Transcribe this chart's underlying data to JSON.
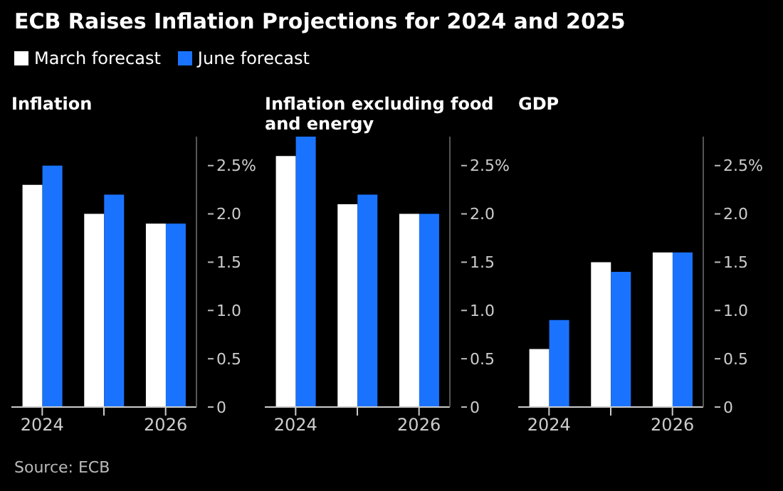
{
  "chart_data": [
    {
      "type": "bar",
      "title": "ECB Raises Inflation Projections for 2024 and 2025",
      "subtitle": "Inflation",
      "legend": "top right",
      "annotations": [
        "Source: ECB"
      ],
      "categories": [
        "2024",
        null,
        "2026"
      ],
      "series": [
        {
          "name": "March forecast",
          "color": "#ffffff",
          "values": [
            2.3,
            2.0,
            1.9
          ]
        },
        {
          "name": "June forecast",
          "color": "#1a73ff",
          "values": [
            2.5,
            2.2,
            1.9
          ]
        }
      ],
      "ylim": [
        0,
        2.8
      ],
      "yticks": [
        0,
        0.5,
        {
          "value": 1,
          "label": "1.0"
        },
        1.5,
        {
          "value": 2,
          "label": "2.0"
        },
        {
          "value": 2.5,
          "label": "2.5%"
        }
      ]
    },
    {
      "type": "bar",
      "subtitle": "Inflation excluding food and energy",
      "categories": [
        "2024",
        null,
        "2026"
      ],
      "series": [
        {
          "color": "#ffffff",
          "values": [
            2.6,
            2.1,
            2.0
          ]
        },
        {
          "color": "#1a73ff",
          "values": [
            2.8,
            2.2,
            2.0
          ]
        }
      ],
      "ylim": [
        0,
        2.8
      ],
      "yticks": [
        0,
        0.5,
        {
          "value": 1,
          "label": "1.0"
        },
        1.5,
        {
          "value": 2,
          "label": "2.0"
        },
        {
          "value": 2.5,
          "label": "2.5%"
        }
      ]
    },
    {
      "type": "bar",
      "subtitle": "GDP",
      "categories": [
        "2024",
        null,
        "2026"
      ],
      "series": [
        {
          "color": "#ffffff",
          "values": [
            0.6,
            1.5,
            1.6
          ]
        },
        {
          "color": "#1a73ff",
          "values": [
            0.9,
            1.4,
            1.6
          ]
        }
      ],
      "ylim": [
        0,
        2.8
      ],
      "yticks": [
        0,
        0.5,
        {
          "value": 1,
          "label": "1.0"
        },
        1.5,
        {
          "value": 2,
          "label": "2.0"
        },
        {
          "value": 2.5,
          "label": "2.5%"
        }
      ]
    }
  ]
}
